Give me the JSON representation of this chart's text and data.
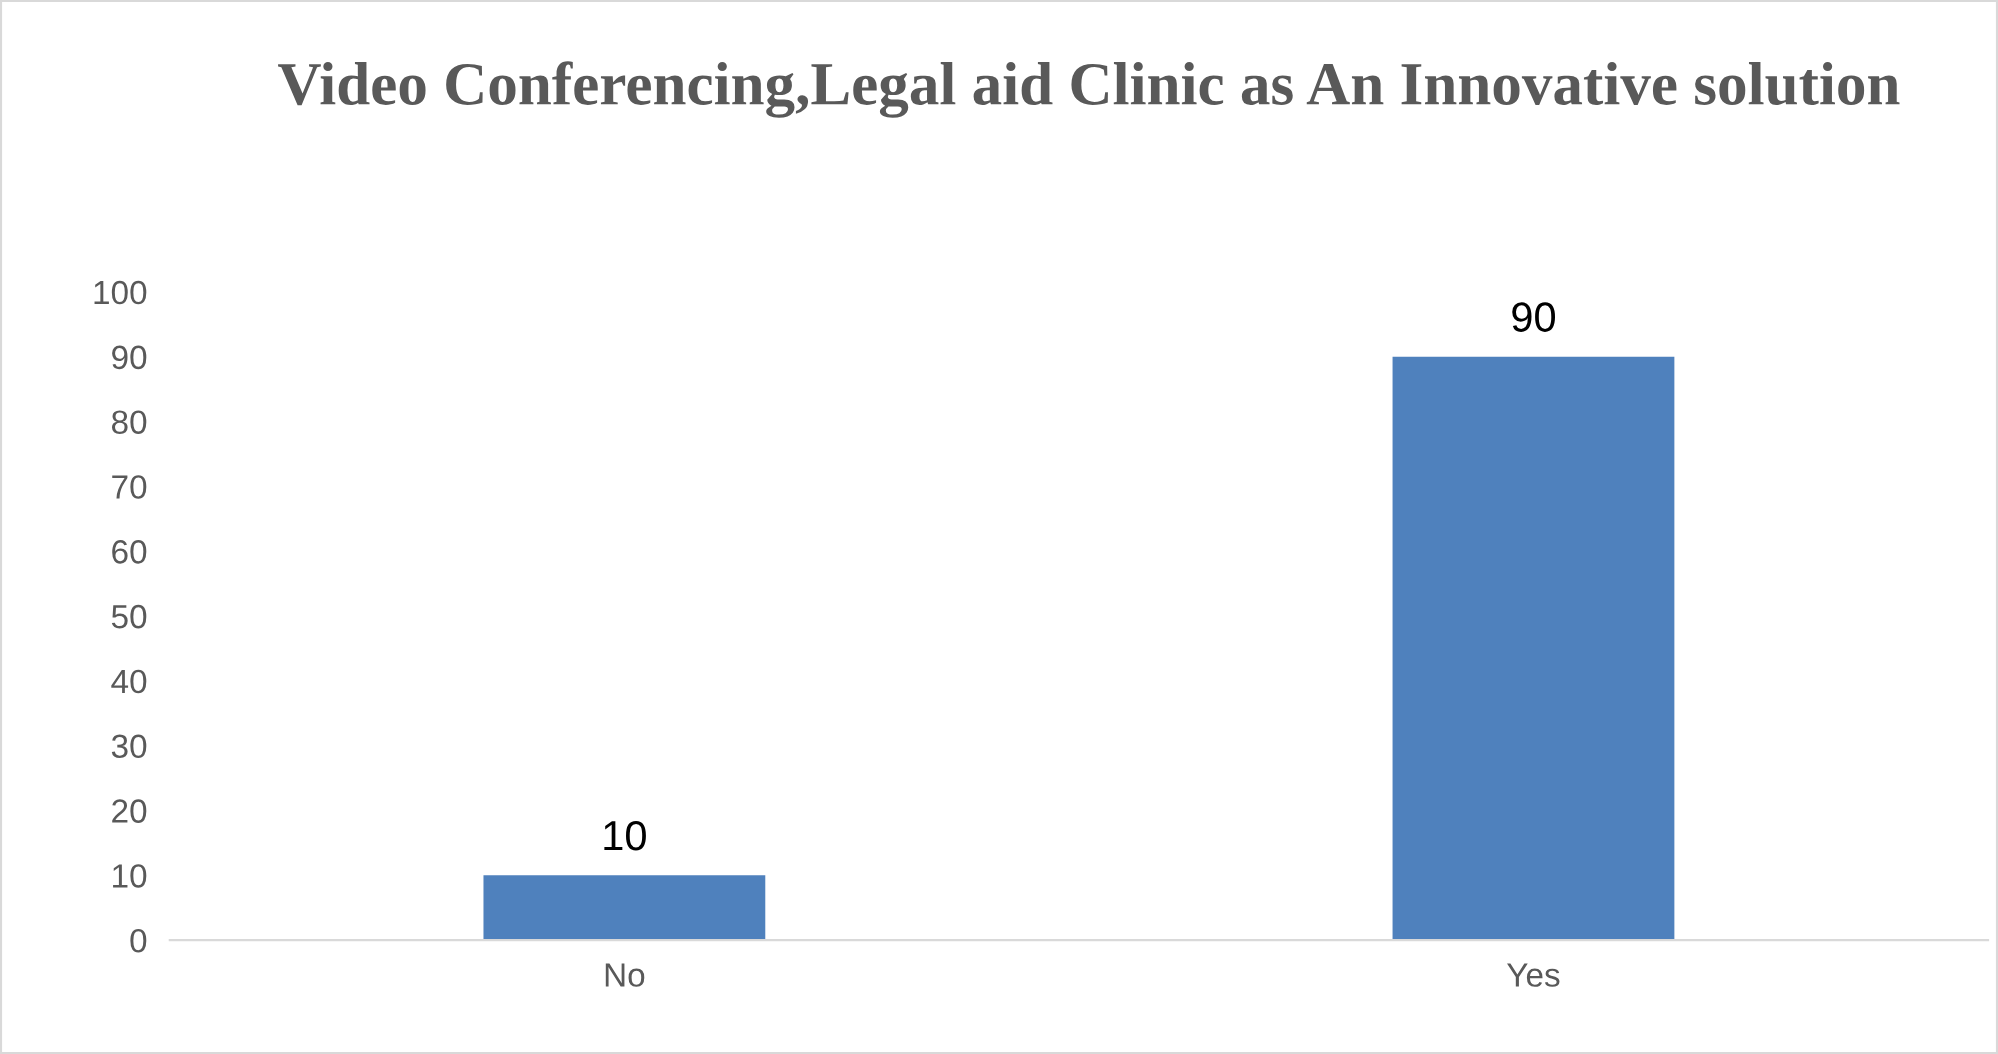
{
  "chart_data": {
    "type": "bar",
    "title": "Video Conferencing,Legal aid Clinic as An Innovative solution",
    "categories": [
      "No",
      "Yes"
    ],
    "values": [
      10,
      90
    ],
    "color": "#4f81bd",
    "ylim": [
      0,
      100
    ],
    "yticks": [
      0,
      10,
      20,
      30,
      40,
      50,
      60,
      70,
      80,
      90,
      100
    ],
    "grid": false,
    "data_labels": true
  }
}
